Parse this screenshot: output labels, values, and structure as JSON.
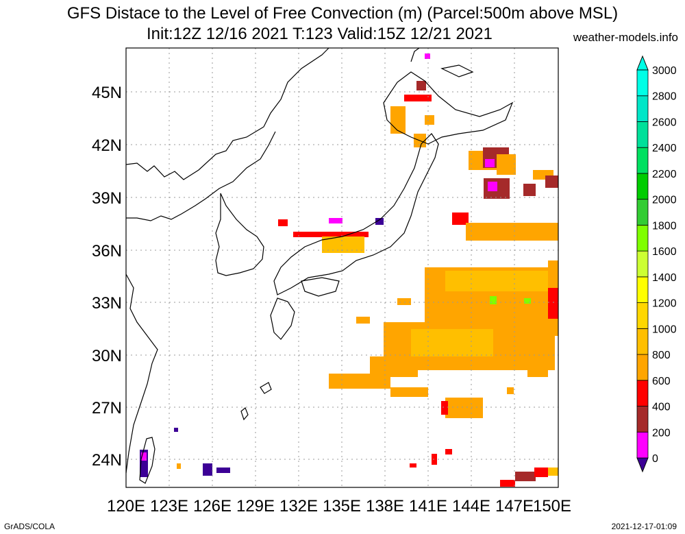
{
  "title": {
    "line1": "GFS Distace to the Level of Free Convection (m) (Parcel:500m above MSL)",
    "line2": "Init:12Z 12/16 2021 T:123 Valid:15Z 12/21 2021",
    "site": "weather-models.info"
  },
  "footer": {
    "left": "GrADS/COLA",
    "right": "2021-12-17-01:09"
  },
  "axes": {
    "lon_labels": [
      "120E",
      "123E",
      "126E",
      "129E",
      "132E",
      "135E",
      "138E",
      "141E",
      "144E",
      "147E",
      "150E"
    ],
    "lat_labels": [
      "24N",
      "27N",
      "30N",
      "33N",
      "36N",
      "39N",
      "42N",
      "45N"
    ]
  },
  "colorbar": {
    "labels": [
      "0",
      "200",
      "400",
      "600",
      "800",
      "1000",
      "1200",
      "1400",
      "1600",
      "1800",
      "2000",
      "2200",
      "2400",
      "2600",
      "2800",
      "3000"
    ],
    "colors": [
      "#3c0096",
      "#ff00ff",
      "#a52a2a",
      "#ff0000",
      "#ffa500",
      "#ffbf00",
      "#ffd700",
      "#ffff00",
      "#ccff33",
      "#7fff00",
      "#33cc33",
      "#00cc00",
      "#00e060",
      "#00e09a",
      "#00e6c8",
      "#00ffe6"
    ]
  }
}
